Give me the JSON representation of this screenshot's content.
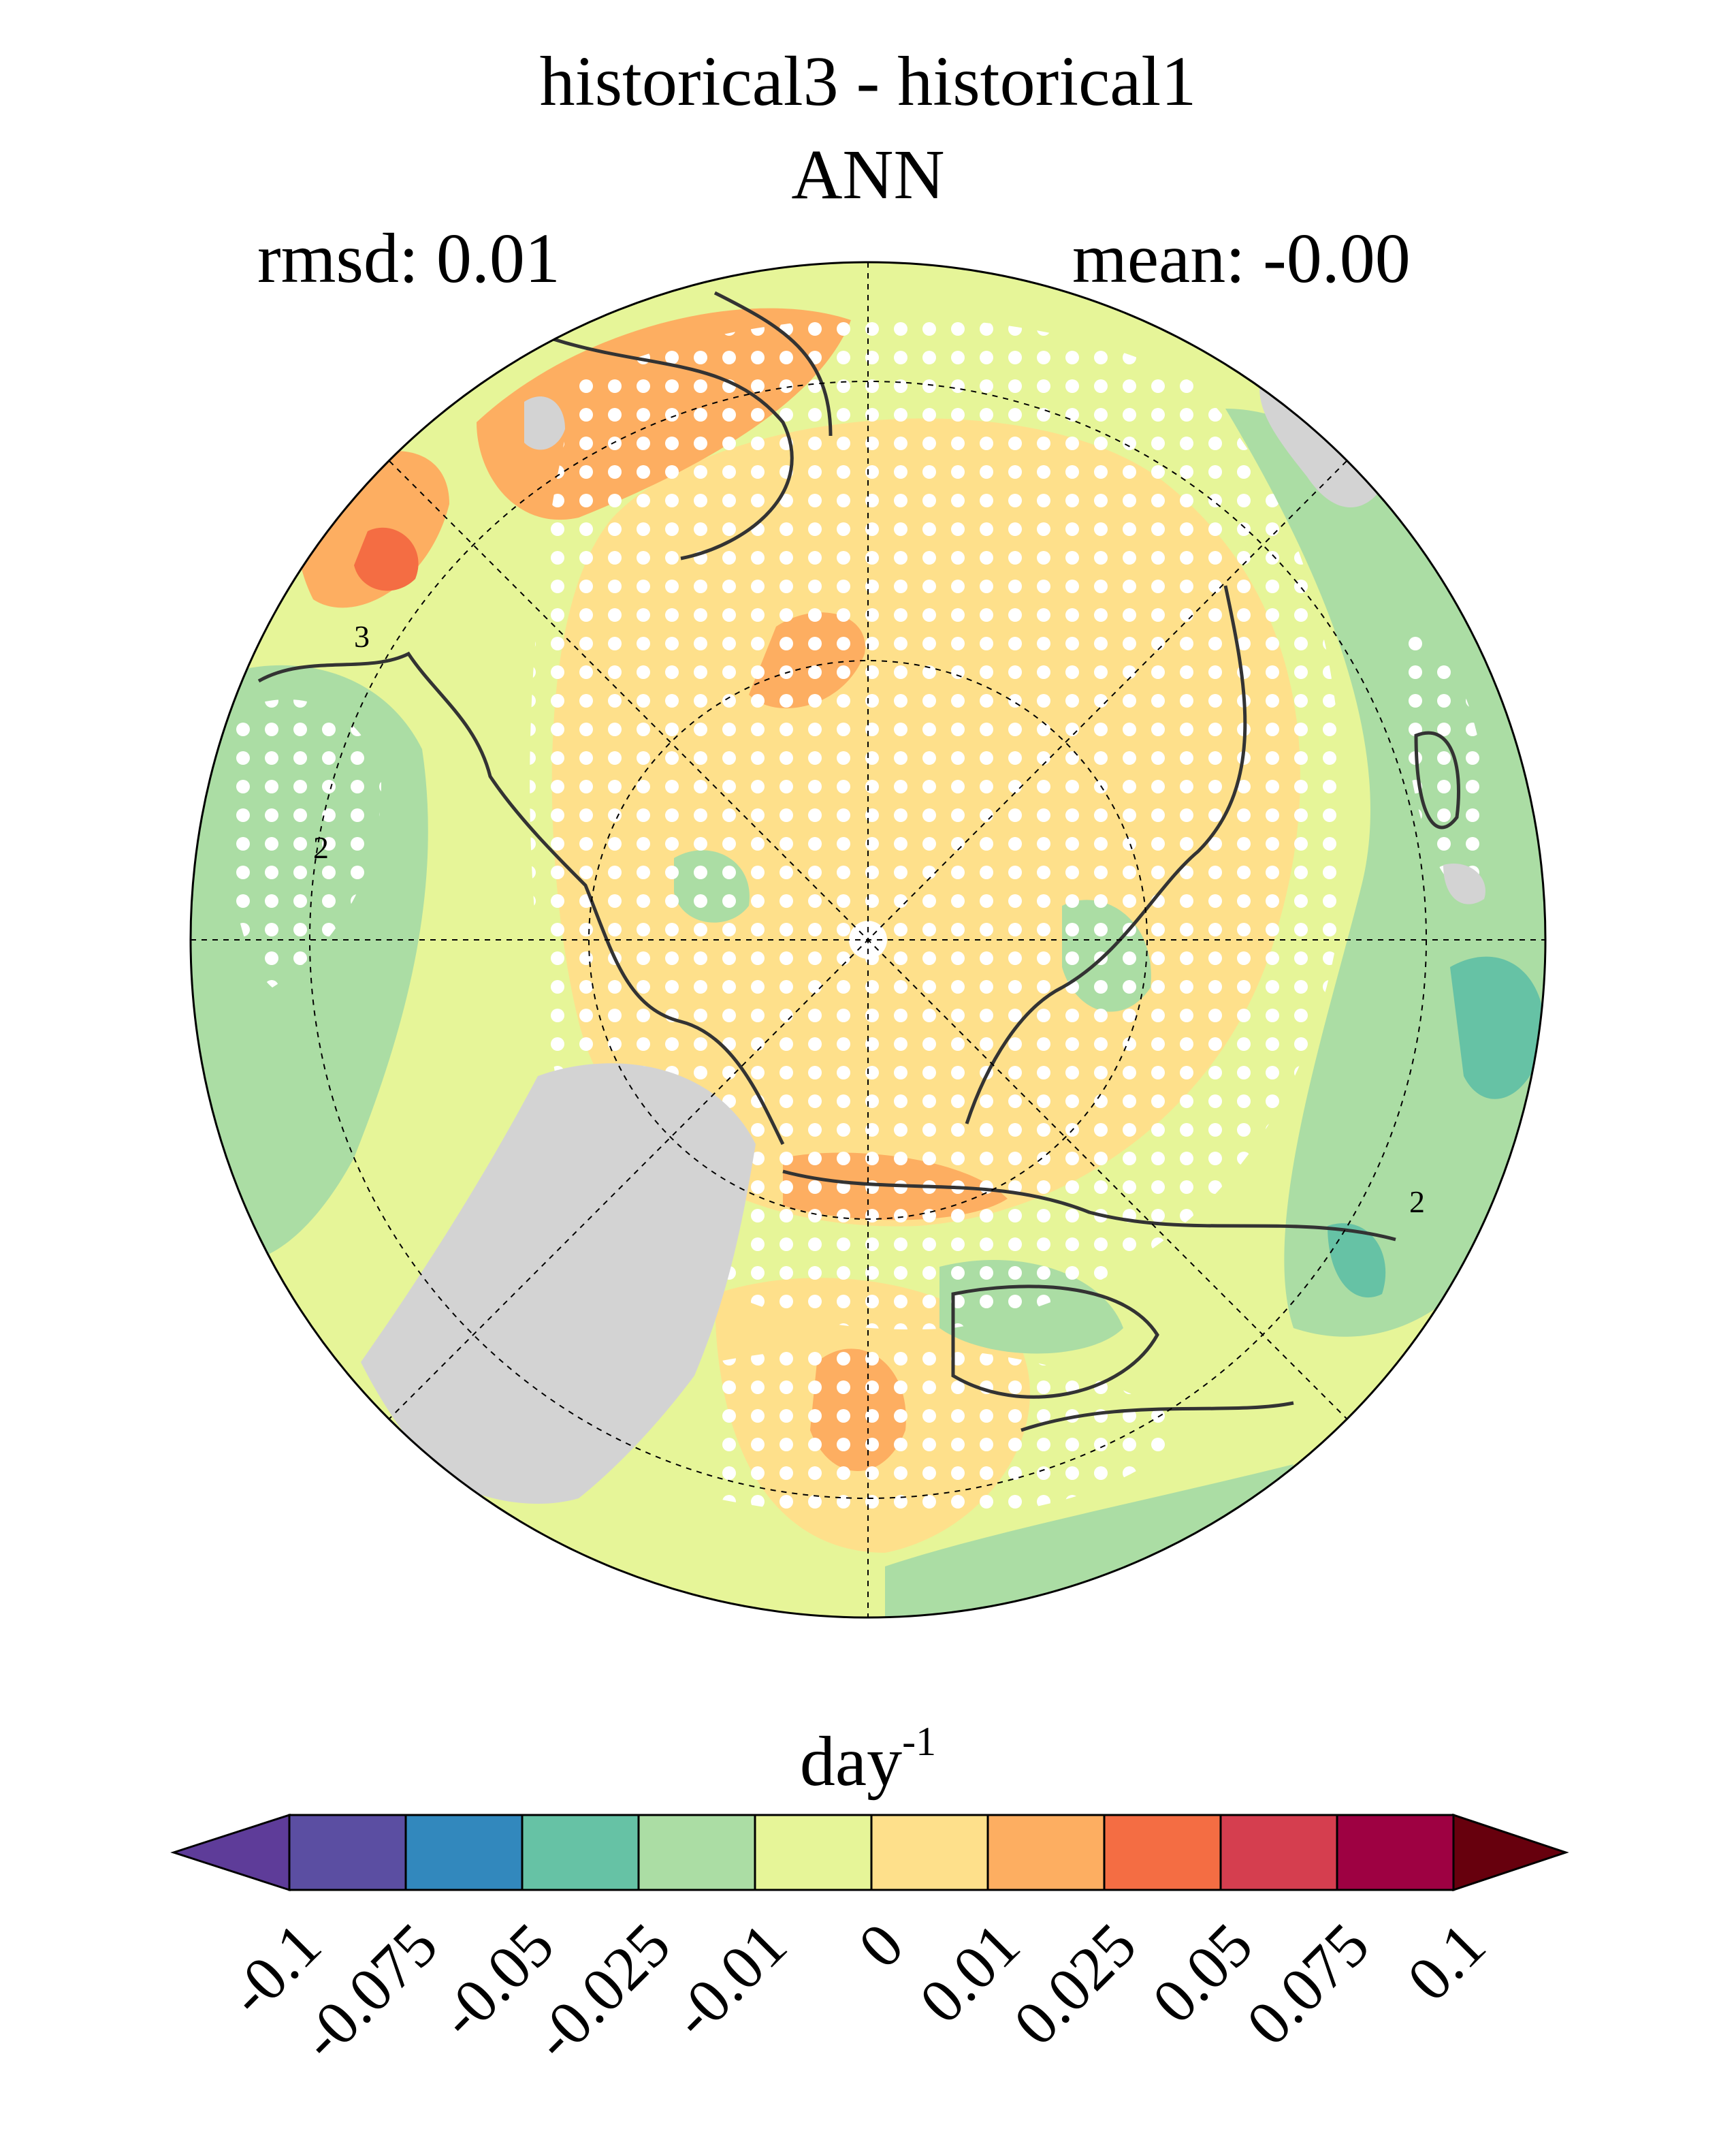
{
  "figure": {
    "title_line1": "historical3 - historical1",
    "title_line2": "ANN",
    "rmsd_text": "rmsd: 0.01",
    "mean_text": "mean: -0.00"
  },
  "map": {
    "projection": "north polar stereographic",
    "land_mask_color": "#d3d3d3",
    "stipple_color": "#ffffff",
    "coastline_color": "#333333",
    "contour_labels": [
      "3",
      "2",
      "2"
    ]
  },
  "colorbar": {
    "unit_base": "day",
    "unit_exponent": "-1",
    "tick_labels": [
      "-0.1",
      "-0.075",
      "-0.05",
      "-0.025",
      "-0.01",
      "0",
      "0.01",
      "0.025",
      "0.05",
      "0.075",
      "0.1"
    ],
    "colors": [
      "#5e3c99",
      "#5b4ea2",
      "#3288bd",
      "#66c2a5",
      "#abdda4",
      "#e6f598",
      "#fee08b",
      "#fdae61",
      "#f46d43",
      "#d53e4f",
      "#9e0142",
      "#67000d"
    ]
  }
}
